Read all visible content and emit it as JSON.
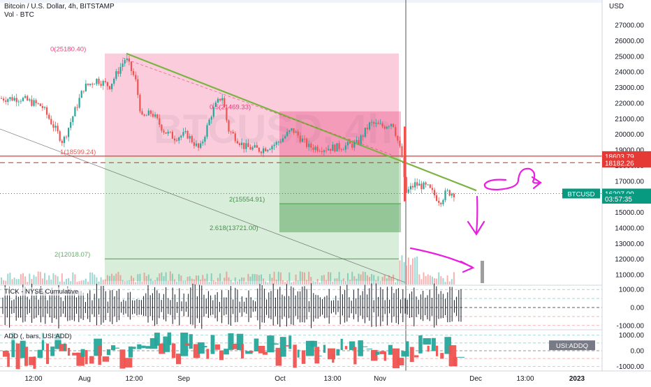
{
  "header": {
    "symbol_title": "Bitcoin / U.S. Dollar, 4h, BITSTAMP",
    "volume_label": "Vol · BTC",
    "currency": "USD",
    "watermark": "BTCUSD, 4h"
  },
  "colors": {
    "up": "#26a69a",
    "down": "#ef5350",
    "pink_zone": "#f48fb1",
    "green_zone": "#81c784",
    "trendline": "#7cb342",
    "red_line": "#e53935",
    "magenta_pen": "#e91ee0",
    "price_badge": "#089981"
  },
  "chart_data": [
    {
      "type": "line",
      "name": "price-pane",
      "title": "Bitcoin / U.S. Dollar, 4h, BITSTAMP",
      "ylabel": "USD",
      "ylim": [
        10400,
        28500
      ],
      "y_ticks": [
        11000,
        12000,
        13000,
        14000,
        15000,
        16000,
        17000,
        18000,
        19000,
        20000,
        21000,
        22000,
        23000,
        24000,
        25000,
        26000,
        27000
      ],
      "y_tick_labels": [
        "11000.00",
        "12000.00",
        "13000.00",
        "14000.00",
        "15000.00",
        "16000.00",
        "17000.00",
        "18000.00",
        "19000.00",
        "20000.00",
        "21000.00",
        "22000.00",
        "23000.00",
        "24000.00",
        "25000.00",
        "26000.00",
        "27000.00"
      ],
      "x_tick_labels": [
        "12:00",
        "Aug",
        "12:00",
        "Sep",
        "Oct",
        "13:00",
        "Nov",
        "Dec",
        "13:00",
        "2023"
      ],
      "series": [
        {
          "name": "BTCUSD",
          "x": [
            "Jul 20",
            "Jul 24",
            "Jul 28",
            "Aug 1",
            "Aug 5",
            "Aug 9",
            "Aug 14",
            "Aug 17",
            "Aug 19",
            "Aug 22",
            "Aug 26",
            "Aug 29",
            "Sep 2",
            "Sep 6",
            "Sep 10",
            "Sep 13",
            "Sep 15",
            "Sep 20",
            "Sep 25",
            "Sep 30",
            "Oct 5",
            "Oct 10",
            "Oct 15",
            "Oct 20",
            "Oct 25",
            "Oct 29",
            "Nov 2",
            "Nov 5",
            "Nov 8",
            "Nov 9",
            "Nov 12",
            "Nov 16",
            "Nov 20",
            "Nov 22",
            "Nov 25"
          ],
          "values": [
            22300,
            21800,
            19500,
            23000,
            23500,
            23100,
            24900,
            23500,
            21000,
            21400,
            20200,
            19800,
            20000,
            19000,
            21500,
            22500,
            20300,
            19200,
            19000,
            19400,
            20300,
            19200,
            19100,
            19200,
            19400,
            20700,
            20500,
            20800,
            18500,
            16200,
            16800,
            16600,
            15700,
            16300,
            16200
          ]
        }
      ],
      "annotations": [
        {
          "label": "0(25180.40)",
          "value": 25180.4
        },
        {
          "label": "0.5(21469.33)",
          "value": 21469.33
        },
        {
          "label": "1(18599.24)",
          "value": 18599.24
        },
        {
          "label": "2(15554.91)",
          "value": 15554.91
        },
        {
          "label": "2.618(13721.00)",
          "value": 13721.0
        },
        {
          "label": "2(12018.07)",
          "value": 12018.07
        }
      ],
      "price_labels": [
        {
          "text": "18603.79",
          "value": 18603.79,
          "color": "#e53935"
        },
        {
          "text": "18182.26",
          "value": 18182.26,
          "color": "#e53935"
        },
        {
          "text": "16207.00",
          "value": 16207.0,
          "color": "#089981"
        },
        {
          "text": "03:57:35",
          "value": 15870,
          "color": "#089981"
        }
      ],
      "symbol_badge": "BTCUSD"
    },
    {
      "type": "bar",
      "name": "TICK - NYSE Cumulative",
      "title": "TICK - NYSE Cumulative",
      "ylim": [
        -1200,
        1200
      ],
      "y_tick_labels": [
        "1000.00",
        "0.00",
        "-1000.00"
      ],
      "y_ticks": [
        1000,
        0,
        -1000
      ]
    },
    {
      "type": "bar",
      "name": "ADD",
      "title": "ADD (, bars, USI:ADD)",
      "ylim": [
        -1300,
        1300
      ],
      "y_tick_labels": [
        "1000.00",
        "0.00",
        "-1000.00"
      ],
      "y_ticks": [
        1000,
        0,
        -1000
      ],
      "badge": "USI:ADDQ"
    }
  ]
}
